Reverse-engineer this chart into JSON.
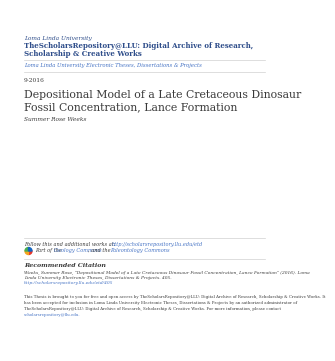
{
  "bg_color": "#ffffff",
  "header_univ": "Loma Linda University",
  "header_repo_line1": "TheScholarsRepository@LLU: Digital Archive of Research,",
  "header_repo_line2": "Scholarship & Creative Works",
  "subheader": "Loma Linda University Electronic Theses, Dissertations & Projects",
  "date": "9-2016",
  "title_line1": "Depositional Model of a Late Cretaceous Dinosaur",
  "title_line2": "Fossil Concentration, Lance Formation",
  "author": "Summer Rose Weeks",
  "follow_label": "Follow this and additional works at: ",
  "follow_link": "http://scholarsrepository.llu.edu/etd",
  "part_text1": "Part of the ",
  "part_link1": "Geology Commons",
  "part_text2": ", and the ",
  "part_link2": "Paleontology Commons",
  "rec_citation_header": "Recommended Citation",
  "rec_citation_line1": "Weeks, Summer Rose, \"Depositional Model of a Late Cretaceous Dinosaur Fossil Concentration, Lance Formation\" (2016). Loma",
  "rec_citation_line2": "Linda University Electronic Theses, Dissertations & Projects. 405.",
  "rec_citation_link": "http://scholarsrepository.llu.edu/etd/405",
  "footer_line1": "This Thesis is brought to you for free and open access by TheScholarsRepository@LLU: Digital Archive of Research, Scholarship & Creative Works. It",
  "footer_line2": "has been accepted for inclusion in Loma Linda University Electronic Theses, Dissertations & Projects by an authorized administrator of",
  "footer_line3": "TheScholarsRepository@LLU: Digital Archive of Research, Scholarship & Creative Works. For more information, please contact",
  "footer_line4": "scholarsrepository@llu.edu.",
  "footer_link": "scholarsrepository@llu.edu.",
  "blue_dark": "#2e4d8a",
  "blue_link": "#4472c4",
  "text_dark": "#3a3a3a",
  "line_color": "#d0d0d0",
  "icon_colors": [
    "#e63329",
    "#f5a623",
    "#4caf50",
    "#2196f3"
  ]
}
